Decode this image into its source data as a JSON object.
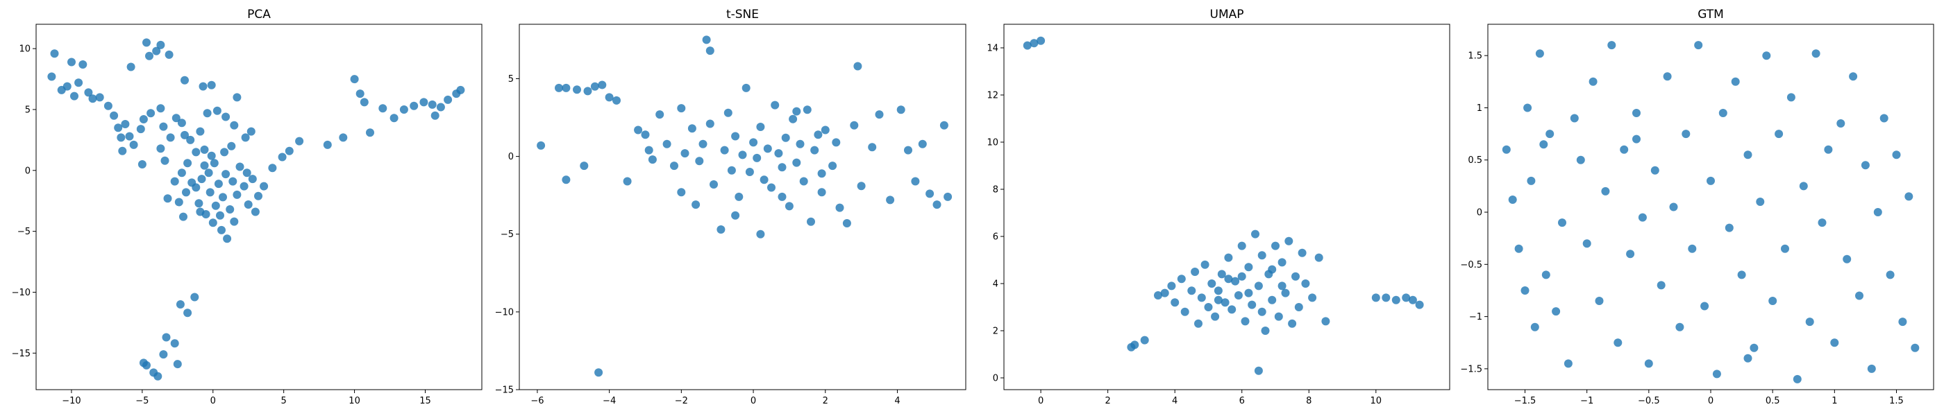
{
  "colors": {
    "marker": "#1f77b4"
  },
  "chart_data": [
    {
      "type": "scatter",
      "title": "PCA",
      "xlim": [
        -12.5,
        19
      ],
      "ylim": [
        -18,
        12
      ],
      "xticks": [
        -10,
        -5,
        0,
        5,
        10,
        15
      ],
      "yticks": [
        -15,
        -10,
        -5,
        0,
        5,
        10
      ],
      "points": [
        [
          -11.2,
          9.6
        ],
        [
          -11.4,
          7.7
        ],
        [
          -10.7,
          6.6
        ],
        [
          -10.3,
          6.9
        ],
        [
          -10,
          8.9
        ],
        [
          -9.5,
          7.2
        ],
        [
          -9.2,
          8.7
        ],
        [
          -9.8,
          6.1
        ],
        [
          -8.8,
          6.4
        ],
        [
          -8.5,
          5.9
        ],
        [
          -8.0,
          6.0
        ],
        [
          -7.4,
          5.3
        ],
        [
          -7.0,
          4.5
        ],
        [
          -6.7,
          3.5
        ],
        [
          -6.2,
          3.8
        ],
        [
          -6.5,
          2.7
        ],
        [
          -5.9,
          2.8
        ],
        [
          -5.6,
          2.1
        ],
        [
          -5.1,
          3.4
        ],
        [
          -4.9,
          4.2
        ],
        [
          -4.4,
          4.7
        ],
        [
          -3.7,
          5.1
        ],
        [
          -3.5,
          3.6
        ],
        [
          -3.0,
          2.7
        ],
        [
          -2.6,
          4.3
        ],
        [
          -2.2,
          3.9
        ],
        [
          -2.0,
          2.9
        ],
        [
          -1.6,
          2.5
        ],
        [
          -1.2,
          1.5
        ],
        [
          -0.9,
          3.2
        ],
        [
          -0.4,
          4.7
        ],
        [
          0.3,
          4.9
        ],
        [
          0.9,
          4.4
        ],
        [
          1.5,
          3.7
        ],
        [
          2.3,
          2.7
        ],
        [
          2.7,
          3.2
        ],
        [
          -5.8,
          8.5
        ],
        [
          -4.5,
          9.4
        ],
        [
          -4.0,
          9.8
        ],
        [
          -3.1,
          9.5
        ],
        [
          -2.0,
          7.4
        ],
        [
          -0.7,
          6.9
        ],
        [
          -0.1,
          7.0
        ],
        [
          1.7,
          6.0
        ],
        [
          -4.7,
          10.5
        ],
        [
          -3.7,
          10.3
        ],
        [
          -6.4,
          1.6
        ],
        [
          -5.0,
          0.5
        ],
        [
          -3.7,
          1.8
        ],
        [
          -3.4,
          0.8
        ],
        [
          -2.7,
          -0.9
        ],
        [
          -3.2,
          -2.3
        ],
        [
          -2.2,
          -0.2
        ],
        [
          -1.8,
          0.6
        ],
        [
          -1.5,
          -1.0
        ],
        [
          -1.0,
          -2.7
        ],
        [
          -0.5,
          -3.6
        ],
        [
          0.0,
          -4.3
        ],
        [
          0.6,
          -4.9
        ],
        [
          1.0,
          -5.6
        ],
        [
          1.2,
          -3.2
        ],
        [
          1.7,
          -2.0
        ],
        [
          2.2,
          -1.3
        ],
        [
          2.8,
          -0.7
        ],
        [
          3.2,
          -2.1
        ],
        [
          3.6,
          -1.3
        ],
        [
          4.2,
          0.2
        ],
        [
          4.9,
          1.1
        ],
        [
          5.4,
          1.6
        ],
        [
          6.1,
          2.4
        ],
        [
          8.1,
          2.1
        ],
        [
          9.2,
          2.7
        ],
        [
          10.0,
          7.5
        ],
        [
          10.4,
          6.3
        ],
        [
          10.7,
          5.6
        ],
        [
          11.1,
          3.1
        ],
        [
          12.0,
          5.1
        ],
        [
          12.8,
          4.3
        ],
        [
          13.5,
          5.0
        ],
        [
          14.2,
          5.3
        ],
        [
          14.9,
          5.6
        ],
        [
          15.5,
          5.4
        ],
        [
          16.1,
          5.2
        ],
        [
          16.6,
          5.8
        ],
        [
          17.2,
          6.3
        ],
        [
          17.5,
          6.6
        ],
        [
          15.7,
          4.5
        ],
        [
          -0.3,
          -0.2
        ],
        [
          -0.8,
          -0.7
        ],
        [
          0.4,
          -1.1
        ],
        [
          0.9,
          -0.3
        ],
        [
          -0.2,
          -1.8
        ],
        [
          0.7,
          -2.2
        ],
        [
          1.4,
          -0.9
        ],
        [
          -1.2,
          -1.4
        ],
        [
          -0.6,
          0.4
        ],
        [
          0.1,
          0.6
        ],
        [
          1.9,
          0.3
        ],
        [
          2.4,
          -0.2
        ],
        [
          -1.9,
          -1.8
        ],
        [
          -2.4,
          -2.6
        ],
        [
          0.2,
          -2.9
        ],
        [
          -0.9,
          -3.4
        ],
        [
          0.5,
          -3.7
        ],
        [
          1.5,
          -4.2
        ],
        [
          2.5,
          -2.8
        ],
        [
          -0.1,
          1.2
        ],
        [
          -0.6,
          1.7
        ],
        [
          0.8,
          1.5
        ],
        [
          1.3,
          2.0
        ],
        [
          -2.1,
          -3.8
        ],
        [
          3.0,
          -3.4
        ],
        [
          -2.3,
          -11.0
        ],
        [
          -1.3,
          -10.4
        ],
        [
          -1.8,
          -11.7
        ],
        [
          -3.3,
          -13.7
        ],
        [
          -2.7,
          -14.2
        ],
        [
          -3.5,
          -15.1
        ],
        [
          -2.5,
          -15.9
        ],
        [
          -4.2,
          -16.6
        ],
        [
          -4.7,
          -16.0
        ],
        [
          -3.9,
          -16.9
        ],
        [
          -4.9,
          -15.8
        ]
      ]
    },
    {
      "type": "scatter",
      "title": "t-SNE",
      "xlim": [
        -6.5,
        5.9
      ],
      "ylim": [
        -15,
        8.5
      ],
      "xticks": [
        -6,
        -4,
        -2,
        0,
        2,
        4
      ],
      "yticks": [
        -15,
        -10,
        -5,
        0,
        5
      ],
      "points": [
        [
          -5.9,
          0.7
        ],
        [
          -5.4,
          4.4
        ],
        [
          -5.2,
          4.4
        ],
        [
          -4.9,
          4.3
        ],
        [
          -4.6,
          4.2
        ],
        [
          -4.4,
          4.5
        ],
        [
          -4.2,
          4.6
        ],
        [
          -4.0,
          3.8
        ],
        [
          -3.8,
          3.6
        ],
        [
          -5.2,
          -1.5
        ],
        [
          -4.7,
          -0.6
        ],
        [
          -4.3,
          -13.9
        ],
        [
          -3.5,
          -1.6
        ],
        [
          -3.2,
          1.7
        ],
        [
          -3.0,
          1.4
        ],
        [
          -2.8,
          -0.2
        ],
        [
          -2.6,
          2.7
        ],
        [
          -2.4,
          0.8
        ],
        [
          -2.2,
          -0.6
        ],
        [
          -2.0,
          -2.3
        ],
        [
          -1.9,
          0.2
        ],
        [
          -1.7,
          1.8
        ],
        [
          -1.5,
          -0.3
        ],
        [
          -1.4,
          0.8
        ],
        [
          -1.3,
          7.5
        ],
        [
          -1.2,
          6.8
        ],
        [
          -1.2,
          2.1
        ],
        [
          -1.1,
          -1.8
        ],
        [
          -0.9,
          -4.7
        ],
        [
          -0.8,
          0.4
        ],
        [
          -0.7,
          2.8
        ],
        [
          -0.6,
          -0.9
        ],
        [
          -0.5,
          1.3
        ],
        [
          -0.4,
          -2.6
        ],
        [
          -0.3,
          0.1
        ],
        [
          -0.2,
          4.4
        ],
        [
          -0.1,
          -1.0
        ],
        [
          0.0,
          0.9
        ],
        [
          0.1,
          -0.1
        ],
        [
          0.2,
          1.9
        ],
        [
          0.3,
          -1.5
        ],
        [
          0.4,
          0.5
        ],
        [
          0.5,
          -2.0
        ],
        [
          0.6,
          3.3
        ],
        [
          0.7,
          0.2
        ],
        [
          0.8,
          -0.7
        ],
        [
          0.9,
          1.2
        ],
        [
          1.0,
          -3.2
        ],
        [
          1.1,
          2.4
        ],
        [
          1.2,
          -0.4
        ],
        [
          1.3,
          0.8
        ],
        [
          1.4,
          -1.6
        ],
        [
          1.5,
          3.0
        ],
        [
          1.6,
          -4.2
        ],
        [
          1.7,
          0.4
        ],
        [
          1.8,
          1.4
        ],
        [
          1.9,
          -1.1
        ],
        [
          2.0,
          1.7
        ],
        [
          2.2,
          -0.6
        ],
        [
          2.4,
          -3.3
        ],
        [
          2.6,
          -4.3
        ],
        [
          2.8,
          2.0
        ],
        [
          2.9,
          5.8
        ],
        [
          3.0,
          -1.9
        ],
        [
          3.3,
          0.6
        ],
        [
          3.5,
          2.7
        ],
        [
          3.8,
          -2.8
        ],
        [
          4.1,
          3.0
        ],
        [
          4.3,
          0.4
        ],
        [
          4.5,
          -1.6
        ],
        [
          4.7,
          0.8
        ],
        [
          4.9,
          -2.4
        ],
        [
          5.1,
          -3.1
        ],
        [
          5.3,
          2.0
        ],
        [
          5.4,
          -2.6
        ],
        [
          -0.5,
          -3.8
        ],
        [
          0.2,
          -5.0
        ],
        [
          1.2,
          2.9
        ],
        [
          -2.9,
          0.4
        ],
        [
          -2.0,
          3.1
        ],
        [
          0.8,
          -2.6
        ],
        [
          1.9,
          -2.3
        ],
        [
          -1.6,
          -3.1
        ],
        [
          2.3,
          0.9
        ]
      ]
    },
    {
      "type": "scatter",
      "title": "UMAP",
      "xlim": [
        -1.1,
        12.2
      ],
      "ylim": [
        -0.5,
        15
      ],
      "xticks": [
        0,
        2,
        4,
        6,
        8,
        10
      ],
      "yticks": [
        0,
        2,
        4,
        6,
        8,
        10,
        12,
        14
      ],
      "points": [
        [
          -0.4,
          14.1
        ],
        [
          -0.2,
          14.2
        ],
        [
          0.0,
          14.3
        ],
        [
          2.7,
          1.3
        ],
        [
          2.8,
          1.4
        ],
        [
          3.1,
          1.6
        ],
        [
          3.5,
          3.5
        ],
        [
          3.7,
          3.6
        ],
        [
          3.9,
          3.9
        ],
        [
          4.0,
          3.2
        ],
        [
          4.2,
          4.2
        ],
        [
          4.3,
          2.8
        ],
        [
          4.5,
          3.7
        ],
        [
          4.6,
          4.5
        ],
        [
          4.7,
          2.3
        ],
        [
          4.8,
          3.4
        ],
        [
          4.9,
          4.8
        ],
        [
          5.0,
          3.0
        ],
        [
          5.1,
          4.0
        ],
        [
          5.2,
          2.6
        ],
        [
          5.3,
          3.7
        ],
        [
          5.4,
          4.4
        ],
        [
          5.5,
          3.2
        ],
        [
          5.6,
          5.1
        ],
        [
          5.7,
          2.9
        ],
        [
          5.8,
          4.1
        ],
        [
          5.9,
          3.5
        ],
        [
          6.0,
          5.6
        ],
        [
          6.1,
          2.4
        ],
        [
          6.2,
          4.7
        ],
        [
          6.3,
          3.1
        ],
        [
          6.4,
          6.1
        ],
        [
          6.5,
          0.3
        ],
        [
          6.5,
          3.9
        ],
        [
          6.6,
          5.2
        ],
        [
          6.7,
          2.0
        ],
        [
          6.8,
          4.4
        ],
        [
          6.9,
          3.3
        ],
        [
          7.0,
          5.6
        ],
        [
          7.1,
          2.6
        ],
        [
          7.2,
          4.9
        ],
        [
          7.3,
          3.6
        ],
        [
          7.4,
          5.8
        ],
        [
          7.5,
          2.3
        ],
        [
          7.6,
          4.3
        ],
        [
          7.7,
          3.0
        ],
        [
          7.8,
          5.3
        ],
        [
          7.9,
          4.0
        ],
        [
          8.1,
          3.4
        ],
        [
          8.3,
          5.1
        ],
        [
          8.5,
          2.4
        ],
        [
          10.0,
          3.4
        ],
        [
          10.3,
          3.4
        ],
        [
          10.6,
          3.3
        ],
        [
          10.9,
          3.4
        ],
        [
          11.1,
          3.3
        ],
        [
          11.3,
          3.1
        ],
        [
          6.2,
          3.6
        ],
        [
          6.9,
          4.6
        ],
        [
          5.6,
          4.2
        ],
        [
          7.2,
          3.9
        ],
        [
          6.0,
          4.3
        ],
        [
          5.3,
          3.3
        ],
        [
          6.6,
          2.8
        ]
      ]
    },
    {
      "type": "scatter",
      "title": "GTM",
      "xlim": [
        -1.8,
        1.8
      ],
      "ylim": [
        -1.7,
        1.8
      ],
      "xticks": [
        -1.5,
        -1.0,
        -0.5,
        0.0,
        0.5,
        1.0,
        1.5
      ],
      "yticks": [
        -1.5,
        -1.0,
        -0.5,
        0.0,
        0.5,
        1.0,
        1.5
      ],
      "points": [
        [
          -1.65,
          0.6
        ],
        [
          -1.6,
          0.12
        ],
        [
          -1.55,
          -0.35
        ],
        [
          -1.5,
          -0.75
        ],
        [
          -1.48,
          1.0
        ],
        [
          -1.45,
          0.3
        ],
        [
          -1.42,
          -1.1
        ],
        [
          -1.38,
          1.52
        ],
        [
          -1.33,
          -0.6
        ],
        [
          -1.3,
          0.75
        ],
        [
          -1.25,
          -0.95
        ],
        [
          -1.2,
          -0.1
        ],
        [
          -1.15,
          -1.45
        ],
        [
          -1.1,
          0.9
        ],
        [
          -1.05,
          0.5
        ],
        [
          -1.0,
          -0.3
        ],
        [
          -0.95,
          1.25
        ],
        [
          -0.9,
          -0.85
        ],
        [
          -0.85,
          0.2
        ],
        [
          -0.8,
          1.6
        ],
        [
          -0.75,
          -1.25
        ],
        [
          -0.7,
          0.6
        ],
        [
          -0.65,
          -0.4
        ],
        [
          -0.6,
          0.95
        ],
        [
          -0.55,
          -0.05
        ],
        [
          -0.5,
          -1.45
        ],
        [
          -0.45,
          0.4
        ],
        [
          -0.4,
          -0.7
        ],
        [
          -0.35,
          1.3
        ],
        [
          -0.3,
          0.05
        ],
        [
          -0.25,
          -1.1
        ],
        [
          -0.2,
          0.75
        ],
        [
          -0.15,
          -0.35
        ],
        [
          -0.1,
          1.6
        ],
        [
          -0.05,
          -0.9
        ],
        [
          0.0,
          0.3
        ],
        [
          0.05,
          -1.55
        ],
        [
          0.1,
          0.95
        ],
        [
          0.15,
          -0.15
        ],
        [
          0.2,
          1.25
        ],
        [
          0.25,
          -0.6
        ],
        [
          0.3,
          0.55
        ],
        [
          0.35,
          -1.3
        ],
        [
          0.4,
          0.1
        ],
        [
          0.45,
          1.5
        ],
        [
          0.5,
          -0.85
        ],
        [
          0.55,
          0.75
        ],
        [
          0.6,
          -0.35
        ],
        [
          0.65,
          1.1
        ],
        [
          0.7,
          -1.6
        ],
        [
          0.75,
          0.25
        ],
        [
          0.8,
          -1.05
        ],
        [
          0.85,
          1.52
        ],
        [
          0.9,
          -0.1
        ],
        [
          0.95,
          0.6
        ],
        [
          1.0,
          -1.25
        ],
        [
          1.05,
          0.85
        ],
        [
          1.1,
          -0.45
        ],
        [
          1.15,
          1.3
        ],
        [
          1.2,
          -0.8
        ],
        [
          1.25,
          0.45
        ],
        [
          1.3,
          -1.5
        ],
        [
          1.35,
          0.0
        ],
        [
          1.4,
          0.9
        ],
        [
          1.45,
          -0.6
        ],
        [
          1.5,
          0.55
        ],
        [
          1.55,
          -1.05
        ],
        [
          1.6,
          0.15
        ],
        [
          1.65,
          -1.3
        ],
        [
          -1.35,
          0.65
        ],
        [
          -0.6,
          0.7
        ],
        [
          0.3,
          -1.4
        ]
      ]
    }
  ]
}
